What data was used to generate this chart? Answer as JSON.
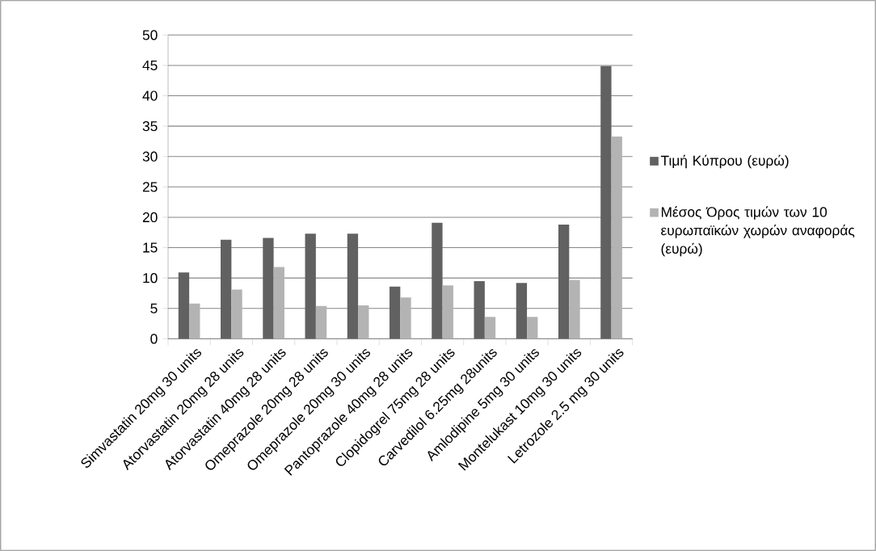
{
  "chart_data": {
    "type": "bar",
    "categories": [
      "Simvastatin 20mg 30 units",
      "Atorvastatin 20mg 28 units",
      "Atorvastatin 40mg 28 units",
      "Omeprazole 20mg 28 units",
      "Omeprazole 20mg 30 units",
      "Pantoprazole 40mg 28 units",
      "Clopidogrel 75mg 28 units",
      "Carvedilol 6.25mg 28units",
      "Amlodipine 5mg 30 units",
      "Montelukast 10mg 30 units",
      "Letrozole 2.5 mg 30 units"
    ],
    "series": [
      {
        "name": "Τιμή Κύπρου (ευρώ)",
        "color": "#616161",
        "values": [
          10.9,
          16.3,
          16.6,
          17.3,
          17.3,
          8.6,
          19.1,
          9.5,
          9.2,
          18.8,
          44.9
        ]
      },
      {
        "name": "Μέσος Όρος τιμών των 10 ευρωπαϊκών χωρών αναφοράς (ευρώ)",
        "color": "#b3b3b3",
        "values": [
          5.8,
          8.1,
          11.8,
          5.4,
          5.5,
          6.8,
          8.8,
          3.6,
          3.6,
          9.7,
          33.3
        ]
      }
    ],
    "ylim": [
      0,
      50
    ],
    "yticks": [
      0,
      5,
      10,
      15,
      20,
      25,
      30,
      35,
      40,
      45,
      50
    ],
    "grid": "y",
    "legend": "right"
  }
}
